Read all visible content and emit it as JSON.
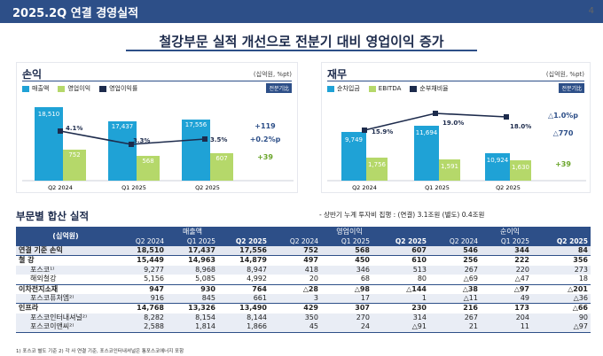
{
  "header": {
    "title": "2025.2Q 연결 경영실적",
    "page": "4"
  },
  "headline": "철강부문 실적 개선으로 전분기 대비 영업이익 증가",
  "colors": {
    "navy": "#2d4f88",
    "blue": "#1fa2d6",
    "green": "#b5d86a",
    "line": "#1d2b4c"
  },
  "pl_panel": {
    "title": "손익",
    "unit": "(십억원, %pt)",
    "badge": "전분기比",
    "legend": [
      "매출액",
      "영업이익",
      "영업이익률"
    ],
    "periods": [
      "Q2 2024",
      "Q1 2025",
      "Q2 2025"
    ],
    "revenue": [
      "18,510",
      "17,437",
      "17,556"
    ],
    "op": [
      "752",
      "568",
      "607"
    ],
    "margin": [
      "4.1%",
      "3.3%",
      "3.5%"
    ],
    "changes": [
      "+119",
      "+0.2%p",
      "+39"
    ]
  },
  "fin_panel": {
    "title": "재무",
    "unit": "(십억원, %pt)",
    "badge": "전분기比",
    "legend": [
      "순차입금",
      "EBITDA",
      "순부채비율"
    ],
    "periods": [
      "Q2 2024",
      "Q1 2025",
      "Q2 2025"
    ],
    "netdebt": [
      "9,749",
      "11,694",
      "10,924"
    ],
    "ebitda": [
      "1,756",
      "1,591",
      "1,630"
    ],
    "ratio": [
      "15.9%",
      "19.0%",
      "18.0%"
    ],
    "changes": [
      "△1.0%p",
      "△770",
      "+39"
    ]
  },
  "chart_data": [
    {
      "type": "bar",
      "title": "손익",
      "categories": [
        "Q2 2024",
        "Q1 2025",
        "Q2 2025"
      ],
      "series": [
        {
          "name": "매출액",
          "values": [
            18510,
            17437,
            17556
          ]
        },
        {
          "name": "영업이익",
          "values": [
            752,
            568,
            607
          ]
        },
        {
          "name": "영업이익률",
          "values": [
            4.1,
            3.3,
            3.5
          ]
        }
      ]
    },
    {
      "type": "bar",
      "title": "재무",
      "categories": [
        "Q2 2024",
        "Q1 2025",
        "Q2 2025"
      ],
      "series": [
        {
          "name": "순차입금",
          "values": [
            9749,
            11694,
            10924
          ]
        },
        {
          "name": "EBITDA",
          "values": [
            1756,
            1591,
            1630
          ]
        },
        {
          "name": "순부채비율",
          "values": [
            15.9,
            19.0,
            18.0
          ]
        }
      ]
    }
  ],
  "section": {
    "title": "부문별 합산 실적",
    "note": "- 상반기 누계 투자비 집행 : (연결) 3.1조원 (별도) 0.4조원"
  },
  "table": {
    "unit_label": "(십억원)",
    "groups": [
      "매출액",
      "영업이익",
      "순이익"
    ],
    "periods": [
      "Q2 2024",
      "Q1 2025",
      "Q2 2025"
    ],
    "rows": [
      {
        "label": "연결 기준 손익",
        "cells": [
          "18,510",
          "17,437",
          "17,556",
          "752",
          "568",
          "607",
          "546",
          "344",
          "84"
        ]
      },
      {
        "label": "철 강",
        "cells": [
          "15,449",
          "14,963",
          "14,879",
          "497",
          "450",
          "610",
          "256",
          "222",
          "356"
        ]
      },
      {
        "label": "포스코¹⁾",
        "cells": [
          "9,277",
          "8,968",
          "8,947",
          "418",
          "346",
          "513",
          "267",
          "220",
          "273"
        ]
      },
      {
        "label": "해외철강",
        "cells": [
          "5,156",
          "5,085",
          "4,992",
          "20",
          "68",
          "80",
          "△69",
          "△47",
          "18"
        ]
      },
      {
        "label": "이차전지소재",
        "cells": [
          "947",
          "930",
          "764",
          "△28",
          "△98",
          "△144",
          "△38",
          "△97",
          "△201"
        ]
      },
      {
        "label": "포스코퓨처엠²⁾",
        "cells": [
          "916",
          "845",
          "661",
          "3",
          "17",
          "1",
          "△11",
          "49",
          "△36"
        ]
      },
      {
        "label": "인프라",
        "cells": [
          "14,768",
          "13,326",
          "13,490",
          "429",
          "307",
          "230",
          "216",
          "173",
          "△66"
        ]
      },
      {
        "label": "포스코인터내셔널²⁾",
        "cells": [
          "8,282",
          "8,154",
          "8,144",
          "350",
          "270",
          "314",
          "267",
          "204",
          "90"
        ]
      },
      {
        "label": "포스코이앤씨²⁾",
        "cells": [
          "2,588",
          "1,814",
          "1,866",
          "45",
          "24",
          "△91",
          "21",
          "11",
          "△97"
        ]
      }
    ]
  },
  "footer": "1) 포스코 별도 기준    2) 각 사 연결 기준, 포스코인터내셔널은 통포스코에너지 포함"
}
